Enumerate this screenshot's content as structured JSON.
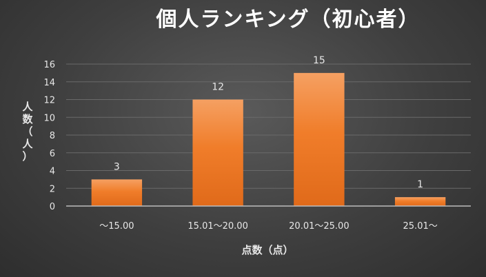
{
  "chart_data": {
    "type": "bar",
    "title": "個人ランキング（初心者）",
    "xlabel": "点数（点）",
    "ylabel": "人数（人）",
    "categories": [
      "～15.00",
      "15.01～20.00",
      "20.01～25.00",
      "25.01～"
    ],
    "values": [
      3,
      12,
      15,
      1
    ],
    "ylim": [
      0,
      16
    ],
    "yticks": [
      0,
      2,
      4,
      6,
      8,
      10,
      12,
      14,
      16
    ],
    "grid": true,
    "legend": "none",
    "bar_color": "#f07d2a",
    "bar_color_light": "#f5a062",
    "bar_color_dark": "#e06a1a"
  }
}
